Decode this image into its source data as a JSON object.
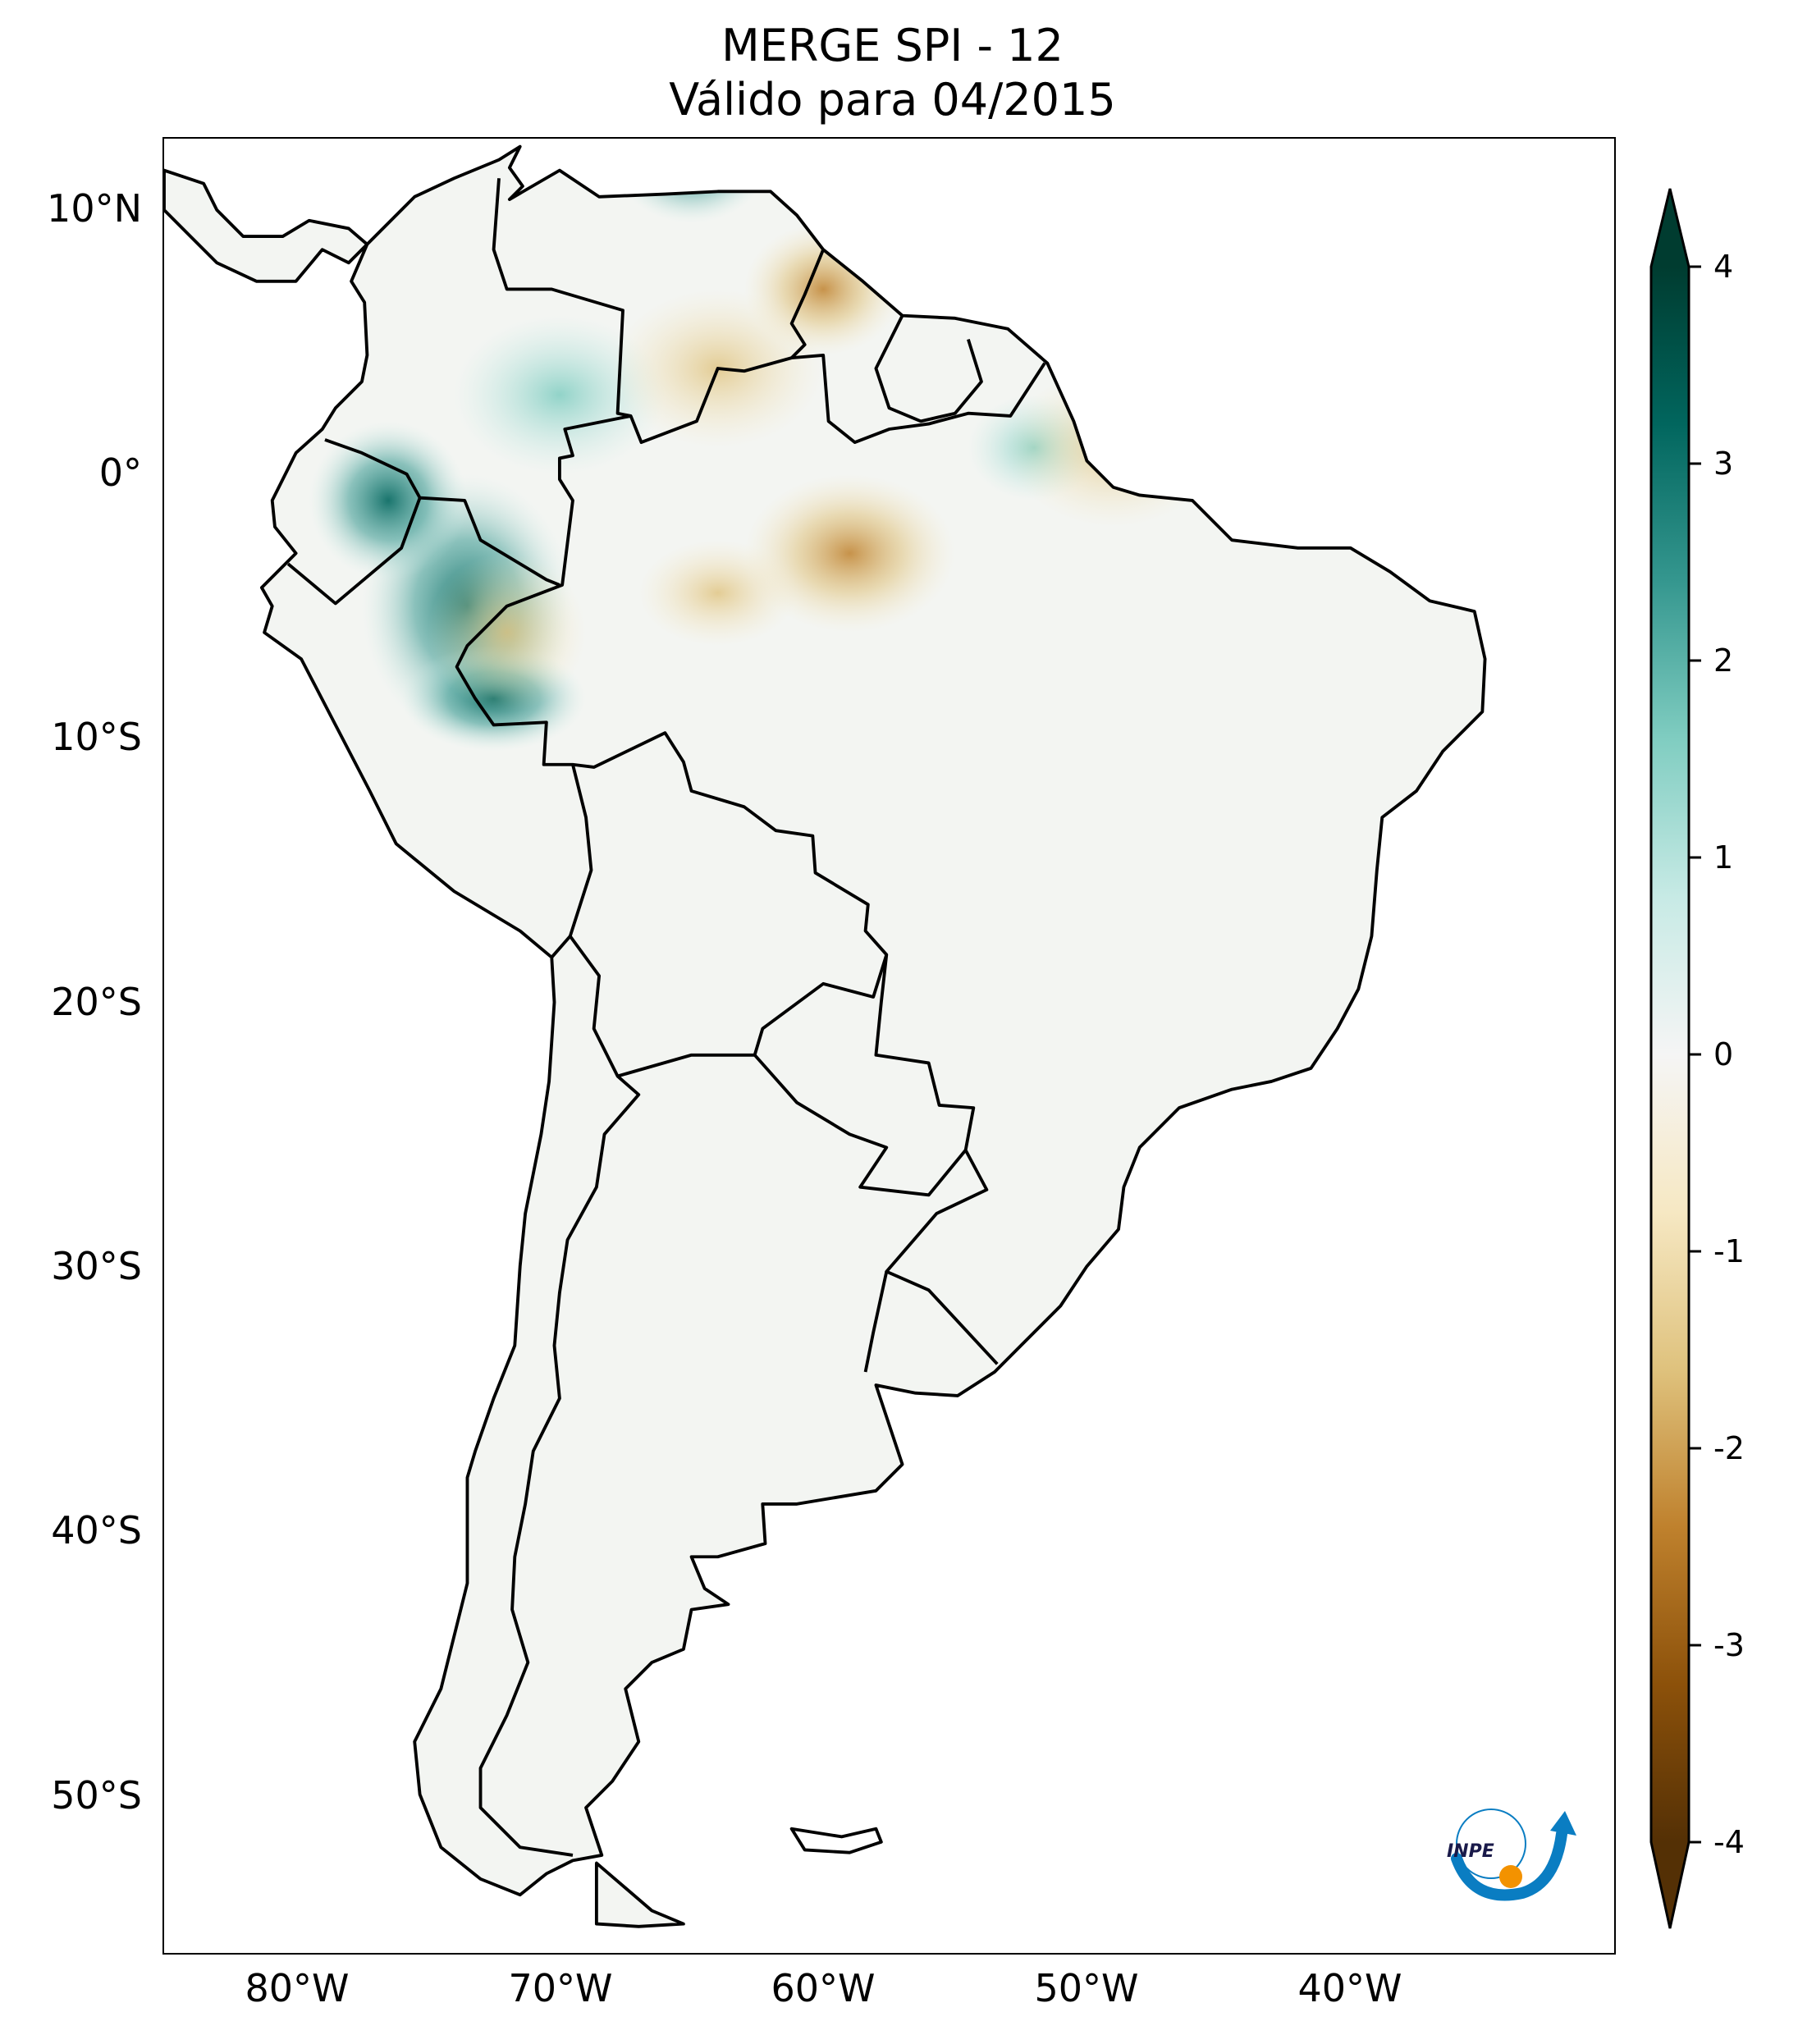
{
  "title": {
    "line1": "MERGE   SPI - 12",
    "line2": "Válido para 04/2015"
  },
  "map": {
    "lon_range": [
      -85,
      -30
    ],
    "lat_range": [
      -56,
      12.7
    ],
    "y_ticks": [
      {
        "lat": 10,
        "label": "10°N"
      },
      {
        "lat": 0,
        "label": "0°"
      },
      {
        "lat": -10,
        "label": "10°S"
      },
      {
        "lat": -20,
        "label": "20°S"
      },
      {
        "lat": -30,
        "label": "30°S"
      },
      {
        "lat": -40,
        "label": "40°S"
      },
      {
        "lat": -50,
        "label": "50°S"
      }
    ],
    "x_ticks": [
      {
        "lon": -80,
        "label": "80°W"
      },
      {
        "lon": -70,
        "label": "70°W"
      },
      {
        "lon": -60,
        "label": "60°W"
      },
      {
        "lon": -50,
        "label": "50°W"
      },
      {
        "lon": -40,
        "label": "40°W"
      }
    ]
  },
  "colorbar": {
    "colormap": "BrBG",
    "range": [
      -4,
      4
    ],
    "extend": "both",
    "colors": [
      "#543005",
      "#8c510a",
      "#bf812d",
      "#dfc27d",
      "#f6e8c3",
      "#f5f5f5",
      "#c7eae5",
      "#80cdc1",
      "#35978f",
      "#01665e",
      "#003c30"
    ],
    "ticks": [
      {
        "value": 4,
        "label": "4"
      },
      {
        "value": 3,
        "label": "3"
      },
      {
        "value": 2,
        "label": "2"
      },
      {
        "value": 1,
        "label": "1"
      },
      {
        "value": 0,
        "label": "0"
      },
      {
        "value": -1,
        "label": "-1"
      },
      {
        "value": -2,
        "label": "-2"
      },
      {
        "value": -3,
        "label": "-3"
      },
      {
        "value": -4,
        "label": "-4"
      }
    ]
  },
  "logo": {
    "text": "INPE",
    "colors": {
      "blue": "#0a7dc2",
      "orange": "#f39200"
    }
  }
}
